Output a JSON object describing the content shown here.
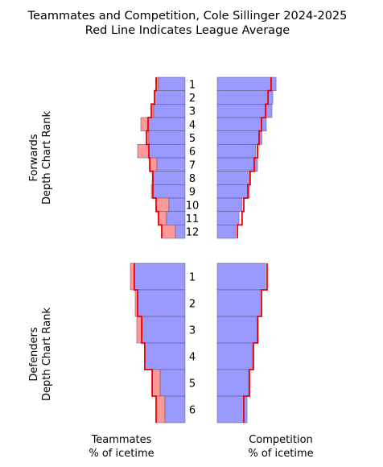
{
  "chart_data": {
    "type": "bar",
    "title": "Teammates and Competition, Cole Sillinger 2024-2025",
    "subtitle": "Red Line Indicates League Average",
    "x_label_left": [
      "Teammates",
      "% of icetime"
    ],
    "x_label_right": [
      "Competition",
      "% of icetime"
    ],
    "colors": {
      "bar": "#9999ff",
      "diff": "#ff9999",
      "average": "#ee0000",
      "edge": "#555566"
    },
    "panels": [
      {
        "name": "forwards",
        "ylabel": [
          "Forwards",
          "Depth Chart Rank"
        ],
        "ranks": [
          "1",
          "2",
          "3",
          "4",
          "5",
          "6",
          "7",
          "8",
          "9",
          "10",
          "11",
          "12"
        ],
        "teammates": [
          25.4,
          29.2,
          30.0,
          42.3,
          34.6,
          45.4,
          26.9,
          31.5,
          32.3,
          15.4,
          17.7,
          9.2
        ],
        "teammates_league": [
          27.7,
          29.2,
          32.3,
          35.4,
          36.9,
          34.6,
          33.8,
          30.8,
          30.8,
          27.7,
          25.4,
          22.3
        ],
        "competition": [
          56.2,
          53.1,
          52.3,
          46.9,
          42.7,
          36.9,
          38.5,
          31.5,
          30.8,
          23.8,
          20.8,
          17.7
        ],
        "competition_league": [
          51.5,
          48.5,
          46.2,
          42.3,
          40.0,
          38.5,
          35.4,
          31.5,
          29.2,
          25.4,
          23.8,
          19.2
        ]
      },
      {
        "name": "defenders",
        "ylabel": [
          "Defenders",
          "Depth Chart Rank"
        ],
        "ranks": [
          "1",
          "2",
          "3",
          "4",
          "5",
          "6"
        ],
        "teammates": [
          52.3,
          47.7,
          46.2,
          38.5,
          23.8,
          19.2
        ],
        "teammates_league": [
          48.5,
          45.4,
          41.5,
          38.5,
          31.5,
          27.7
        ],
        "competition": [
          46.2,
          42.3,
          39.2,
          33.8,
          30.0,
          28.5
        ],
        "competition_league": [
          47.7,
          42.3,
          38.5,
          34.6,
          30.8,
          25.4
        ]
      }
    ]
  }
}
